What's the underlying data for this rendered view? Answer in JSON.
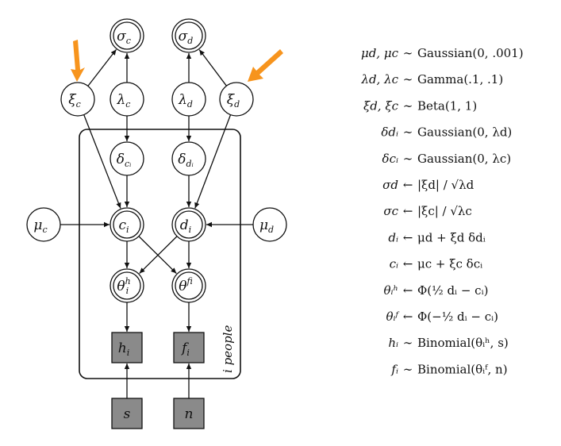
{
  "nodes": {
    "sigma_c": {
      "label": "σ",
      "sub": "c"
    },
    "sigma_d": {
      "label": "σ",
      "sub": "d"
    },
    "xi_c": {
      "label": "ξ",
      "sub": "c"
    },
    "lambda_c": {
      "label": "λ",
      "sub": "c"
    },
    "lambda_d": {
      "label": "λ",
      "sub": "d"
    },
    "xi_d": {
      "label": "ξ",
      "sub": "d"
    },
    "delta_ci": {
      "label": "δ",
      "sub": "cᵢ"
    },
    "delta_di": {
      "label": "δ",
      "sub": "dᵢ"
    },
    "mu_c": {
      "label": "μ",
      "sub": "c"
    },
    "c_i": {
      "label": "c",
      "sub": "i"
    },
    "d_i": {
      "label": "d",
      "sub": "i"
    },
    "mu_d": {
      "label": "μ",
      "sub": "d"
    },
    "theta_h": {
      "label": "θ",
      "sub": "i",
      "sup": "h"
    },
    "theta_f": {
      "label": "θ",
      "sub": "i",
      "sup": "f"
    },
    "h_i": {
      "label": "h",
      "sub": "i"
    },
    "f_i": {
      "label": "f",
      "sub": "i"
    },
    "s": {
      "label": "s"
    },
    "n": {
      "label": "n"
    }
  },
  "plate_label": "i people",
  "equations": [
    {
      "lhs": "μd, μc",
      "op": "∼",
      "rhs": "Gaussian(0, .001)"
    },
    {
      "lhs": "λd, λc",
      "op": "∼",
      "rhs": "Gamma(.1, .1)"
    },
    {
      "lhs": "ξd, ξc",
      "op": "∼",
      "rhs": "Beta(1, 1)"
    },
    {
      "lhs": "δdᵢ",
      "op": "∼",
      "rhs": "Gaussian(0, λd)"
    },
    {
      "lhs": "δcᵢ",
      "op": "∼",
      "rhs": "Gaussian(0, λc)"
    },
    {
      "lhs": "σd",
      "op": "←",
      "rhs": "|ξd| / √λd"
    },
    {
      "lhs": "σc",
      "op": "←",
      "rhs": "|ξc| / √λc"
    },
    {
      "lhs": "dᵢ",
      "op": "←",
      "rhs": "μd + ξd δdᵢ"
    },
    {
      "lhs": "cᵢ",
      "op": "←",
      "rhs": "μc + ξc δcᵢ"
    },
    {
      "lhs": "θᵢʰ",
      "op": "←",
      "rhs": "Φ(½ dᵢ − cᵢ)"
    },
    {
      "lhs": "θᵢᶠ",
      "op": "←",
      "rhs": "Φ(−½ dᵢ − cᵢ)"
    },
    {
      "lhs": "hᵢ",
      "op": "∼",
      "rhs": "Binomial(θᵢʰ, s)"
    },
    {
      "lhs": "fᵢ",
      "op": "∼",
      "rhs": "Binomial(θᵢᶠ, n)"
    }
  ],
  "colors": {
    "highlight_arrow": "#F7941D",
    "observed_fill": "#8a8a8a"
  }
}
